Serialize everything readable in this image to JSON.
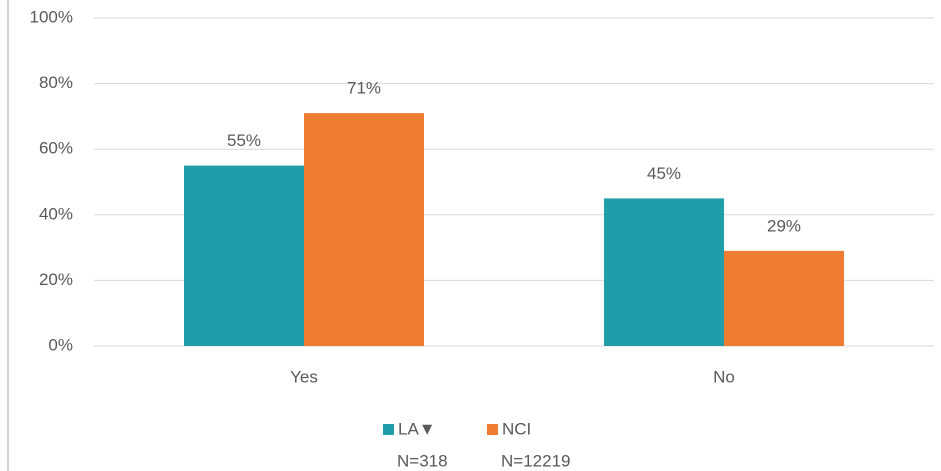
{
  "chart_data": {
    "type": "bar",
    "categories": [
      "Yes",
      "No"
    ],
    "series": [
      {
        "name": "LA▼",
        "n": "N=318",
        "color": "#219ca9",
        "values": [
          55,
          45
        ],
        "value_labels": [
          "55%",
          "45%"
        ]
      },
      {
        "name": "NCI",
        "n": "N=12219",
        "color": "#ee7d31",
        "values": [
          71,
          29
        ],
        "value_labels": [
          "71%",
          "29%"
        ]
      }
    ],
    "ylim": [
      0,
      100
    ],
    "yticks": [
      {
        "value": 0,
        "label": "0%"
      },
      {
        "value": 20,
        "label": "20%"
      },
      {
        "value": 40,
        "label": "40%"
      },
      {
        "value": 60,
        "label": "60%"
      },
      {
        "value": 80,
        "label": "80%"
      },
      {
        "value": 100,
        "label": "100%"
      }
    ],
    "grid": true,
    "legend": "bottom"
  }
}
